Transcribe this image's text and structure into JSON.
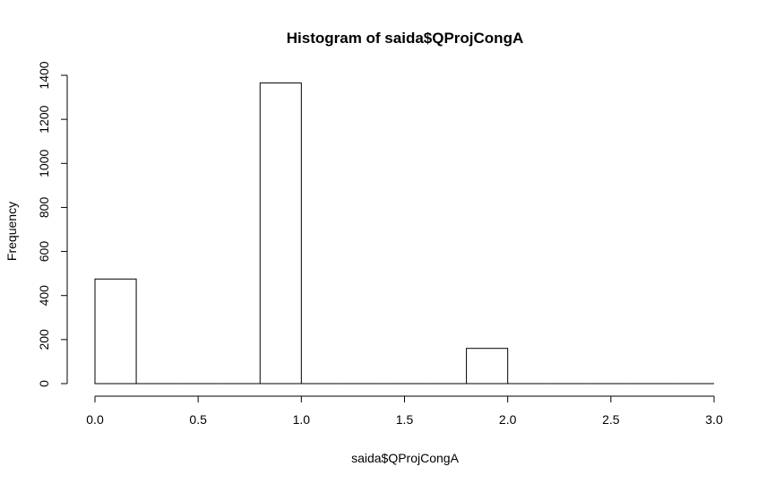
{
  "chart_data": {
    "type": "bar",
    "title": "Histogram of saida$QProjCongA",
    "xlabel": "saida$QProjCongA",
    "ylabel": "Frequency",
    "xlim": [
      0,
      3
    ],
    "ylim": [
      0,
      1400
    ],
    "x_ticks": [
      "0.0",
      "0.5",
      "1.0",
      "1.5",
      "2.0",
      "2.5",
      "3.0"
    ],
    "y_ticks": [
      "0",
      "200",
      "400",
      "600",
      "800",
      "1000",
      "1200",
      "1400"
    ],
    "bins": [
      {
        "from": 0.0,
        "to": 0.2,
        "count": 475
      },
      {
        "from": 0.2,
        "to": 0.4,
        "count": 0
      },
      {
        "from": 0.4,
        "to": 0.6,
        "count": 0
      },
      {
        "from": 0.6,
        "to": 0.8,
        "count": 0
      },
      {
        "from": 0.8,
        "to": 1.0,
        "count": 1365
      },
      {
        "from": 1.0,
        "to": 1.2,
        "count": 0
      },
      {
        "from": 1.2,
        "to": 1.4,
        "count": 0
      },
      {
        "from": 1.4,
        "to": 1.6,
        "count": 0
      },
      {
        "from": 1.6,
        "to": 1.8,
        "count": 0
      },
      {
        "from": 1.8,
        "to": 2.0,
        "count": 160
      },
      {
        "from": 2.0,
        "to": 2.2,
        "count": 0
      },
      {
        "from": 2.2,
        "to": 2.4,
        "count": 0
      },
      {
        "from": 2.4,
        "to": 2.6,
        "count": 0
      },
      {
        "from": 2.6,
        "to": 2.8,
        "count": 0
      },
      {
        "from": 2.8,
        "to": 3.0,
        "count": 0
      }
    ],
    "bar_fill": "#ffffff",
    "bar_stroke": "#000000"
  }
}
